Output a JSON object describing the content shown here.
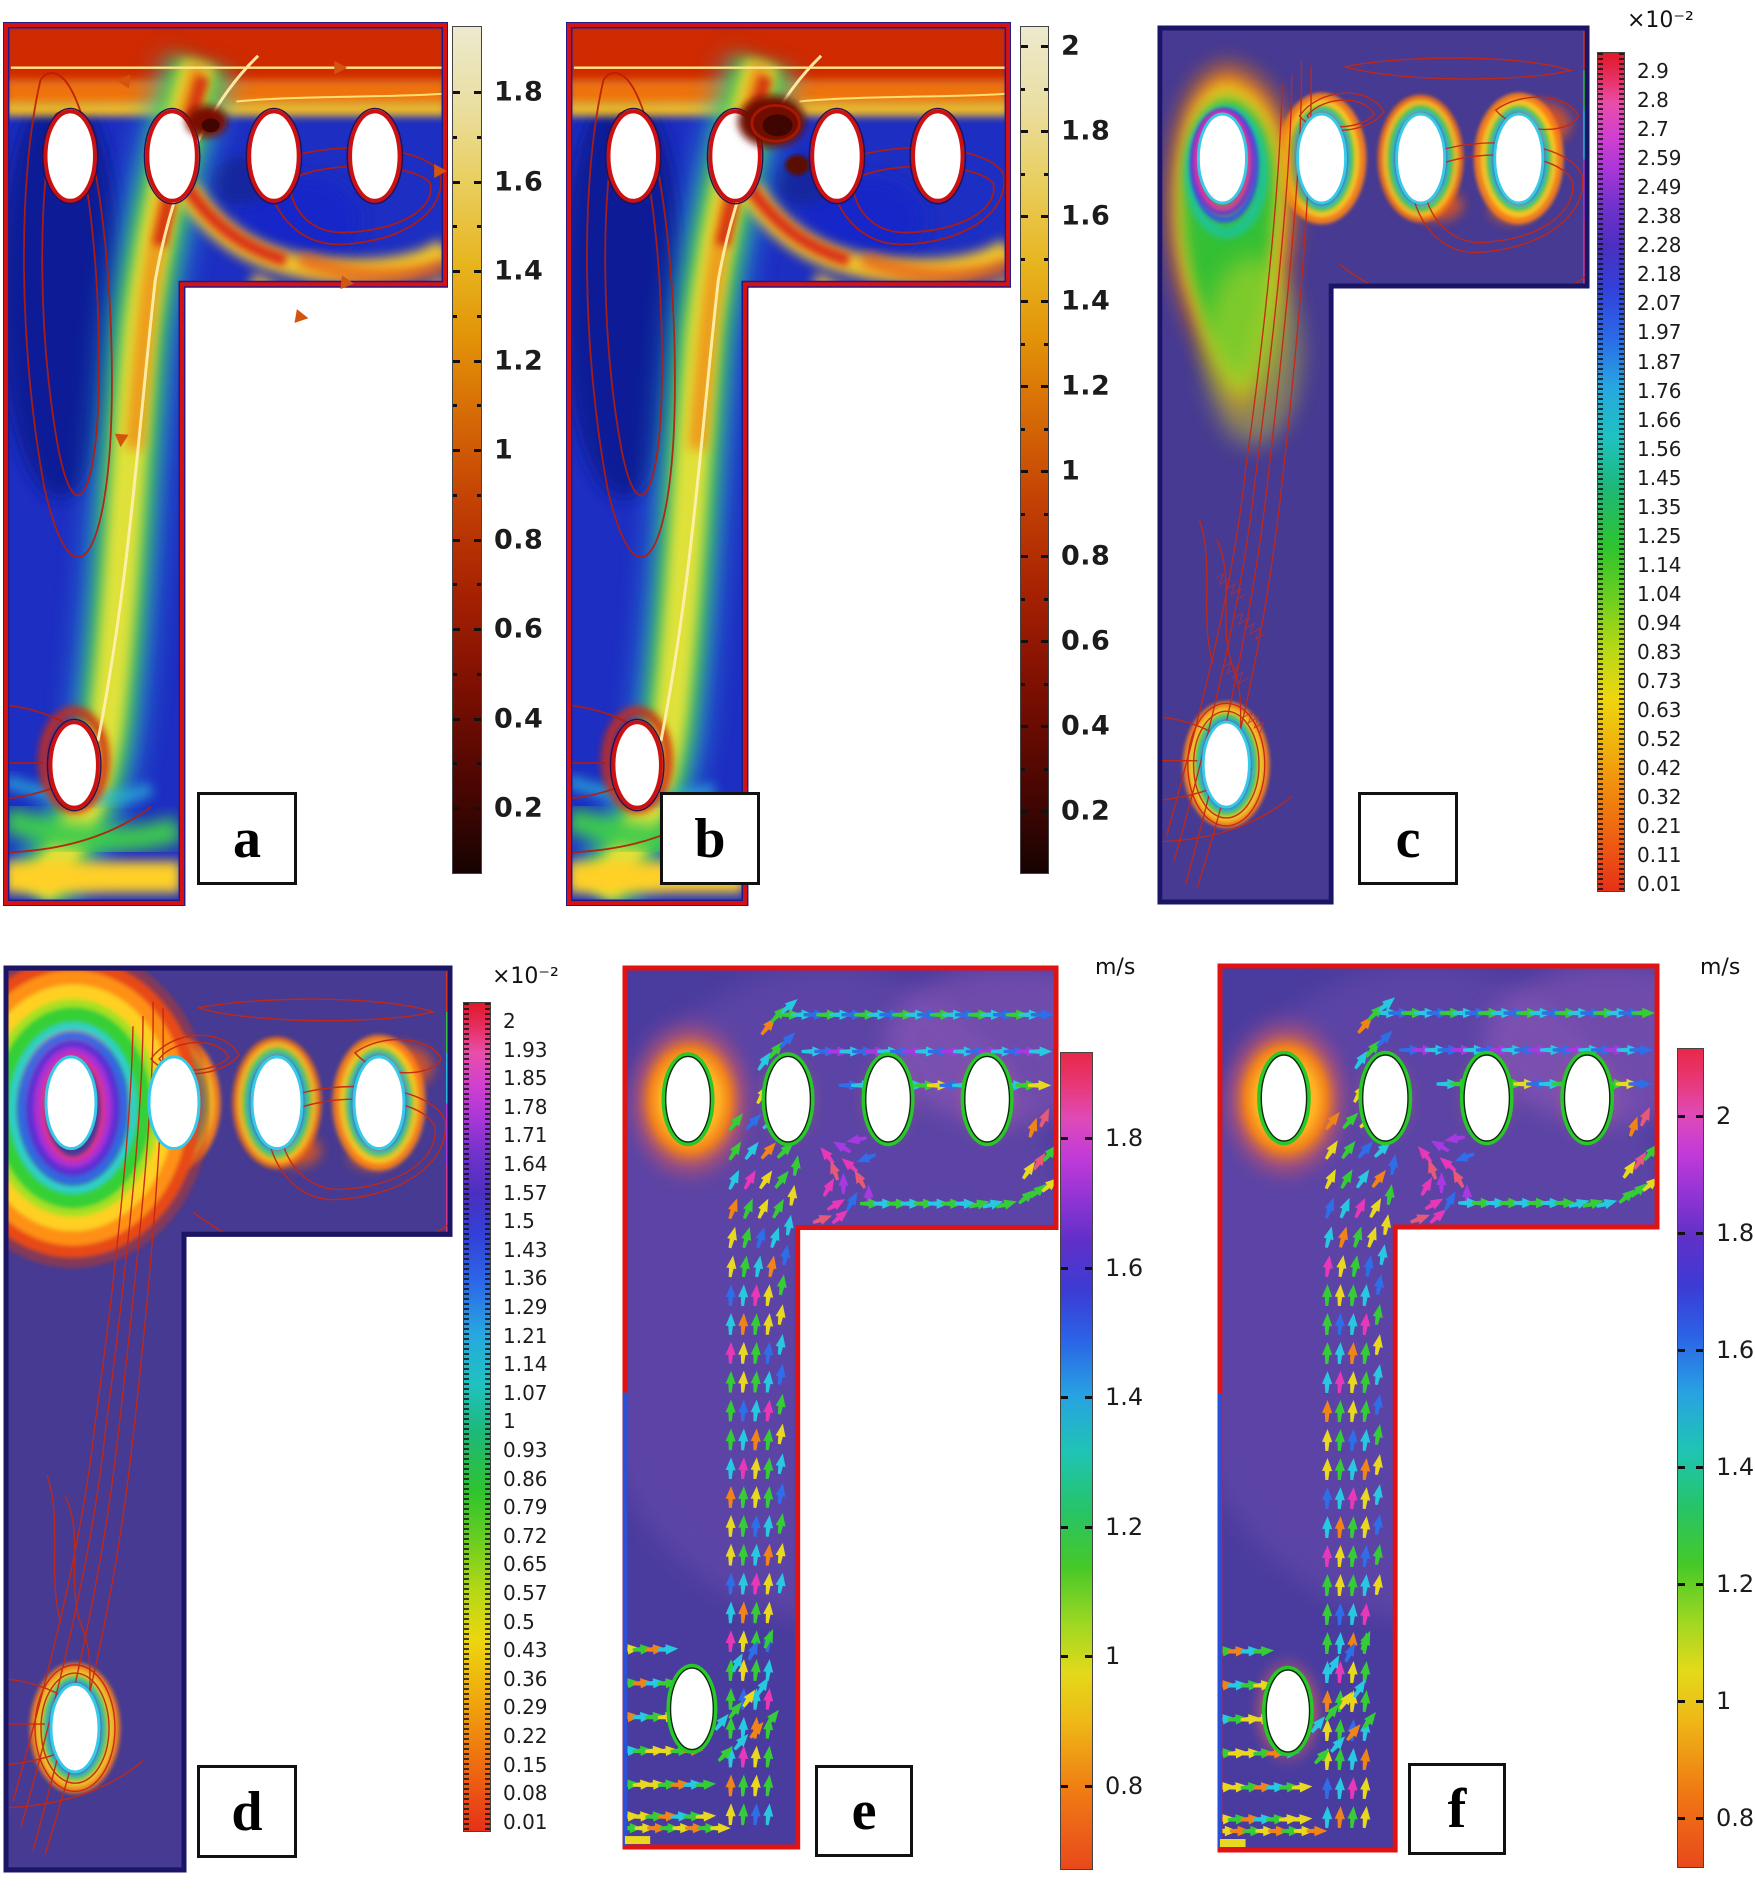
{
  "panels": [
    {
      "id": "a",
      "label": "a"
    },
    {
      "id": "b",
      "label": "b"
    },
    {
      "id": "c",
      "label": "c"
    },
    {
      "id": "d",
      "label": "d"
    },
    {
      "id": "e",
      "label": "e"
    },
    {
      "id": "f",
      "label": "f"
    }
  ],
  "colorbars": {
    "a": {
      "unit": "",
      "ticks": [
        "1.8",
        "1.6",
        "1.4",
        "1.2",
        "1",
        "0.8",
        "0.6",
        "0.4",
        "0.2"
      ]
    },
    "b": {
      "unit": "",
      "ticks": [
        "2",
        "1.8",
        "1.6",
        "1.4",
        "1.2",
        "1",
        "0.8",
        "0.6",
        "0.4",
        "0.2"
      ]
    },
    "c": {
      "unit": "×10⁻²",
      "ticks": [
        "2.9",
        "2.8",
        "2.7",
        "2.59",
        "2.49",
        "2.38",
        "2.28",
        "2.18",
        "2.07",
        "1.97",
        "1.87",
        "1.76",
        "1.66",
        "1.56",
        "1.45",
        "1.35",
        "1.25",
        "1.14",
        "1.04",
        "0.94",
        "0.83",
        "0.73",
        "0.63",
        "0.52",
        "0.42",
        "0.32",
        "0.21",
        "0.11",
        "0.01"
      ]
    },
    "d": {
      "unit": "×10⁻²",
      "ticks": [
        "2",
        "1.93",
        "1.85",
        "1.78",
        "1.71",
        "1.64",
        "1.57",
        "1.5",
        "1.43",
        "1.36",
        "1.29",
        "1.21",
        "1.14",
        "1.07",
        "1",
        "0.93",
        "0.86",
        "0.79",
        "0.72",
        "0.65",
        "0.57",
        "0.5",
        "0.43",
        "0.36",
        "0.29",
        "0.22",
        "0.15",
        "0.08",
        "0.01"
      ]
    },
    "e": {
      "unit": "m/s",
      "ticks": [
        "1.8",
        "1.6",
        "1.4",
        "1.2",
        "1",
        "0.8"
      ]
    },
    "f": {
      "unit": "m/s",
      "ticks": [
        "2",
        "1.8",
        "1.6",
        "1.4",
        "1.2",
        "1",
        "0.8"
      ]
    }
  },
  "colors": {
    "domain_border_red": "#d51212",
    "domain_border_navy": "#1b1566",
    "field_background_blue": "#1d2ec2",
    "field_background_purple": "#463a92",
    "hole_outline_red": "#cc1111",
    "hole_outline_cyan": "#38c8e8",
    "hole_outline_green": "#28c828",
    "contour_line_red": "#c32814"
  }
}
